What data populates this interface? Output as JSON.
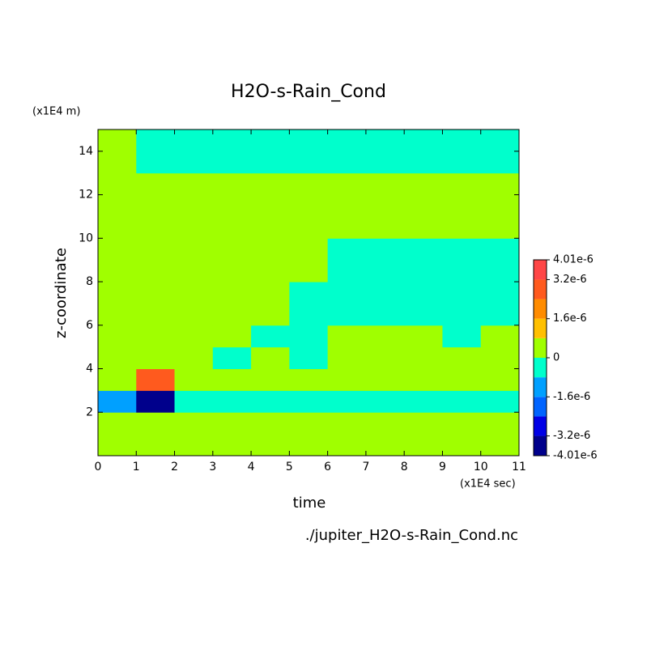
{
  "chart_data": {
    "type": "contour",
    "title": "H2O-s-Rain_Cond",
    "y_unit": "(x1E4 m)",
    "y_label": "z-coordinate",
    "x_label": "time",
    "x_unit": "(x1E4 sec)",
    "footer": "./jupiter_H2O-s-Rain_Cond.nc",
    "xlim": [
      0,
      11
    ],
    "xticks": [
      0,
      1,
      2,
      3,
      4,
      5,
      6,
      7,
      8,
      9,
      10,
      11
    ],
    "ylim": [
      0,
      15
    ],
    "yticks": [
      2,
      4,
      6,
      8,
      10,
      12,
      14
    ],
    "x": [
      0.5,
      1.5,
      2.5,
      3.5,
      4.5,
      5.5,
      6.5,
      7.5,
      8.5,
      9.5,
      10.5
    ],
    "y": [
      0.5,
      1.5,
      2.5,
      3.5,
      4.5,
      5.5,
      6.5,
      7.5,
      8.5,
      9.5,
      10.5,
      11.5,
      12.5,
      13.5,
      14.5
    ],
    "z": [
      [
        4e-07,
        4e-07,
        4e-07,
        4e-07,
        4e-07,
        4e-07,
        4e-07,
        4e-07,
        4e-07,
        4e-07,
        4e-07
      ],
      [
        4e-07,
        4e-07,
        4e-07,
        4e-07,
        4e-07,
        4e-07,
        4e-07,
        4e-07,
        4e-07,
        4e-07,
        4e-07
      ],
      [
        -1.2e-06,
        -3.6e-06,
        -4e-07,
        -4e-07,
        -4e-07,
        -4e-07,
        -4e-07,
        -4e-07,
        -4e-07,
        -4e-07,
        -4e-07
      ],
      [
        4e-07,
        2.8e-06,
        4e-07,
        4e-07,
        4e-07,
        4e-07,
        4e-07,
        4e-07,
        4e-07,
        4e-07,
        4e-07
      ],
      [
        4e-07,
        4e-07,
        4e-07,
        -4e-07,
        4e-07,
        -4e-07,
        4e-07,
        4e-07,
        4e-07,
        4e-07,
        4e-07
      ],
      [
        4e-07,
        4e-07,
        4e-07,
        4e-07,
        -4e-07,
        -4e-07,
        4e-07,
        4e-07,
        4e-07,
        -4e-07,
        4e-07
      ],
      [
        4e-07,
        4e-07,
        4e-07,
        4e-07,
        4e-07,
        -4e-07,
        -4e-07,
        -4e-07,
        -4e-07,
        -4e-07,
        -4e-07
      ],
      [
        4e-07,
        4e-07,
        4e-07,
        4e-07,
        4e-07,
        -4e-07,
        -4e-07,
        -4e-07,
        -4e-07,
        -4e-07,
        -4e-07
      ],
      [
        4e-07,
        4e-07,
        4e-07,
        4e-07,
        4e-07,
        4e-07,
        -4e-07,
        -4e-07,
        -4e-07,
        -4e-07,
        -4e-07
      ],
      [
        4e-07,
        4e-07,
        4e-07,
        4e-07,
        4e-07,
        4e-07,
        -4e-07,
        -4e-07,
        -4e-07,
        -4e-07,
        -4e-07
      ],
      [
        4e-07,
        4e-07,
        4e-07,
        4e-07,
        4e-07,
        4e-07,
        4e-07,
        4e-07,
        4e-07,
        4e-07,
        4e-07
      ],
      [
        4e-07,
        4e-07,
        4e-07,
        4e-07,
        4e-07,
        4e-07,
        4e-07,
        4e-07,
        4e-07,
        4e-07,
        4e-07
      ],
      [
        4e-07,
        4e-07,
        4e-07,
        4e-07,
        4e-07,
        4e-07,
        4e-07,
        4e-07,
        4e-07,
        4e-07,
        4e-07
      ],
      [
        4e-07,
        -4e-07,
        -4e-07,
        -4e-07,
        -4e-07,
        -4e-07,
        -4e-07,
        -4e-07,
        -4e-07,
        -4e-07,
        -4e-07
      ],
      [
        4e-07,
        -4e-07,
        -4e-07,
        -4e-07,
        -4e-07,
        -4e-07,
        -4e-07,
        -4e-07,
        -4e-07,
        -4e-07,
        -4e-07
      ]
    ],
    "levels": [
      -4.01e-06,
      -3.2e-06,
      -2.4e-06,
      -1.6e-06,
      -8e-07,
      0,
      8e-07,
      1.6e-06,
      2.4e-06,
      3.2e-06,
      4.01e-06
    ],
    "colors": [
      "#00008c",
      "#0000e6",
      "#0064ff",
      "#00a0ff",
      "#00ffcc",
      "#a0ff00",
      "#ffc000",
      "#ff8c00",
      "#ff5a1e",
      "#ff4646"
    ],
    "cbar_ticks": [
      {
        "value": 4.01e-06,
        "label": "4.01e-6"
      },
      {
        "value": 3.2e-06,
        "label": "3.2e-6"
      },
      {
        "value": 1.6e-06,
        "label": "1.6e-6"
      },
      0,
      {
        "value": -1.6e-06,
        "label": "-1.6e-6"
      },
      {
        "value": -3.2e-06,
        "label": "-3.2e-6"
      },
      {
        "value": -4.01e-06,
        "label": "-4.01e-6"
      }
    ]
  }
}
